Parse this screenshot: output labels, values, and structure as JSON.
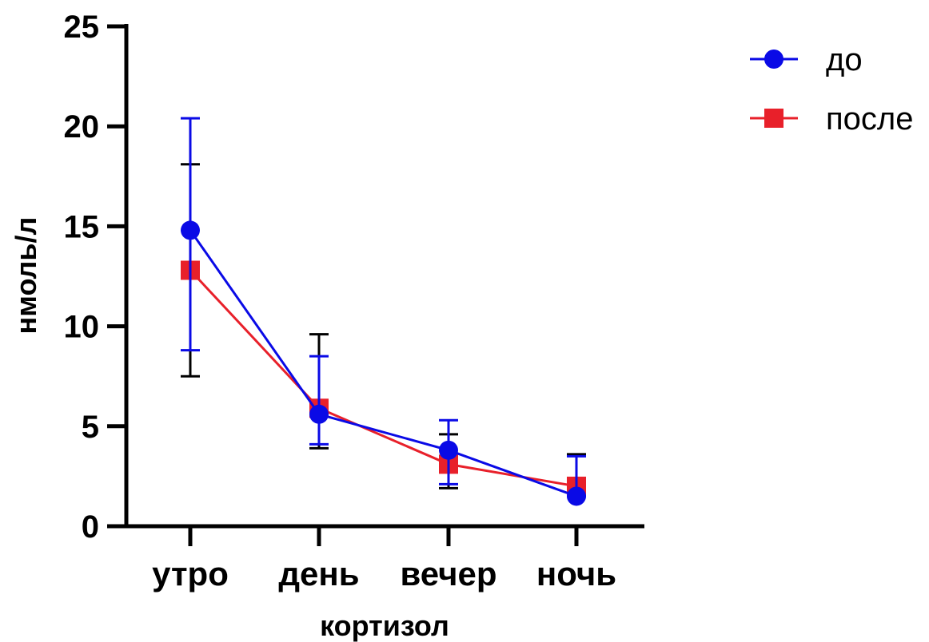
{
  "chart_data": {
    "type": "line",
    "xlabel": "кортизол",
    "ylabel": "нмоль/л",
    "categories": [
      "утро",
      "день",
      "вечер",
      "ночь"
    ],
    "ylim": [
      0,
      25
    ],
    "yticks": [
      0,
      5,
      10,
      15,
      20,
      25
    ],
    "grid": false,
    "legend_position": "top-right",
    "series": [
      {
        "name": "после",
        "color": "#e8202a",
        "errorbar_color": "#000000",
        "marker": "square",
        "values": [
          12.8,
          5.9,
          3.1,
          2.0
        ],
        "err_low": [
          7.5,
          3.9,
          1.9,
          1.9
        ],
        "err_high": [
          18.1,
          9.6,
          4.6,
          3.6
        ]
      },
      {
        "name": "до",
        "color": "#0a0ae6",
        "errorbar_color": "#0a0ae6",
        "marker": "circle",
        "values": [
          14.8,
          5.6,
          3.8,
          1.5
        ],
        "err_low": [
          8.8,
          4.1,
          2.1,
          1.5
        ],
        "err_high": [
          20.4,
          8.5,
          5.3,
          3.5
        ]
      }
    ],
    "legend_order": [
      "до",
      "после"
    ]
  }
}
